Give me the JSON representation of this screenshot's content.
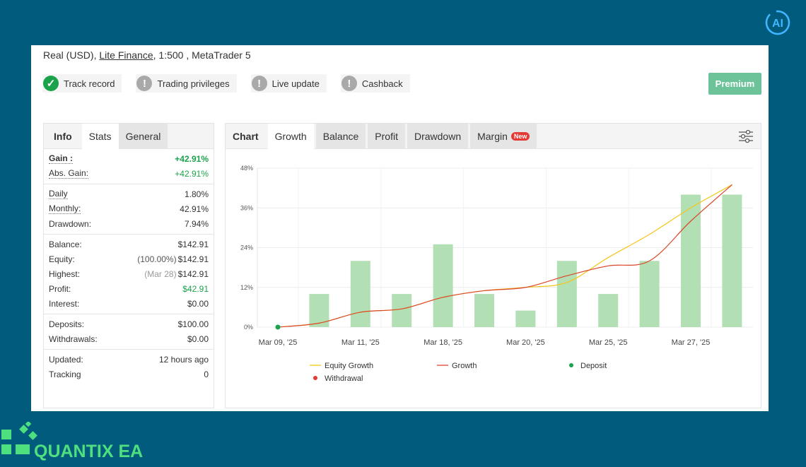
{
  "account": {
    "type": "Real (USD),",
    "broker": "Lite Finance",
    "rest": ", 1:500 , MetaTrader 5"
  },
  "badges": [
    {
      "label": "Track record",
      "status": "ok",
      "icon": "check-circle-icon"
    },
    {
      "label": "Trading privileges",
      "status": "warn",
      "icon": "exclamation-circle-icon"
    },
    {
      "label": "Live update",
      "status": "warn",
      "icon": "exclamation-circle-icon"
    },
    {
      "label": "Cashback",
      "status": "warn",
      "icon": "exclamation-circle-icon"
    }
  ],
  "premium_label": "Premium",
  "stats_tabs": [
    "Info",
    "Stats",
    "General"
  ],
  "stats": {
    "gain": {
      "label": "Gain :",
      "value": "+42.91%"
    },
    "abs_gain": {
      "label": "Abs. Gain:",
      "value": "+42.91%"
    },
    "daily": {
      "label": "Daily",
      "value": "1.80%"
    },
    "monthly": {
      "label": "Monthly:",
      "value": "42.91%"
    },
    "drawdown": {
      "label": "Drawdown:",
      "value": "7.94%"
    },
    "balance": {
      "label": "Balance:",
      "value": "$142.91"
    },
    "equity": {
      "label": "Equity:",
      "note": "(100.00%)",
      "value": "$142.91"
    },
    "highest": {
      "label": "Highest:",
      "note": "(Mar 28)",
      "value": "$142.91"
    },
    "profit": {
      "label": "Profit:",
      "value": "$42.91"
    },
    "interest": {
      "label": "Interest:",
      "value": "$0.00"
    },
    "deposits": {
      "label": "Deposits:",
      "value": "$100.00"
    },
    "withdrawals": {
      "label": "Withdrawals:",
      "value": "$0.00"
    },
    "updated": {
      "label": "Updated:",
      "value": "12 hours ago"
    },
    "tracking": {
      "label": "Tracking",
      "value": "0"
    }
  },
  "chart_tabs": {
    "items": [
      "Chart",
      "Growth",
      "Balance",
      "Profit",
      "Drawdown",
      "Margin"
    ],
    "new_badge": "New"
  },
  "colors": {
    "equity_growth": "#f5c518",
    "growth": "#d9472b",
    "deposit": "#1aa34a",
    "withdrawal": "#e53935",
    "bars": "#b3dfb4",
    "background": "#015b7d"
  },
  "chart_data": {
    "type": "bar",
    "x_ticks": [
      "Mar 09, '25",
      "Mar 11, '25",
      "Mar 18, '25",
      "Mar 20, '25",
      "Mar 25, '25",
      "Mar 27, '25"
    ],
    "y_ticks": [
      "0%",
      "12%",
      "24%",
      "36%",
      "48%"
    ],
    "ylim": [
      0,
      48
    ],
    "bar_values": [
      10,
      20,
      10,
      25,
      10,
      5,
      20,
      10,
      20,
      40,
      40
    ],
    "series": [
      {
        "name": "Equity Growth",
        "type": "line",
        "values": [
          [
            0,
            0
          ],
          [
            1,
            1.2
          ],
          [
            2,
            4.5
          ],
          [
            3,
            5.5
          ],
          [
            4,
            9
          ],
          [
            5,
            11
          ],
          [
            6,
            12
          ],
          [
            7,
            13.5
          ],
          [
            8,
            21
          ],
          [
            9,
            28
          ],
          [
            10,
            36
          ],
          [
            11,
            43
          ]
        ]
      },
      {
        "name": "Growth",
        "type": "line",
        "values": [
          [
            0,
            0
          ],
          [
            1,
            1.2
          ],
          [
            2,
            4.5
          ],
          [
            3,
            5.5
          ],
          [
            4,
            9
          ],
          [
            5,
            11
          ],
          [
            6,
            12
          ],
          [
            7,
            15.5
          ],
          [
            8,
            18.5
          ],
          [
            9,
            20
          ],
          [
            10,
            32
          ],
          [
            11,
            43
          ]
        ]
      }
    ],
    "deposit_points": [
      [
        0,
        0
      ]
    ],
    "legend": [
      "Equity Growth",
      "Growth",
      "Deposit",
      "Withdrawal"
    ],
    "legend_position": "bottom",
    "grid": true
  },
  "brand": {
    "name": "QUANTIX EA",
    "logo_icon": "pixel-squares-icon",
    "corner_icon": "ai-circle-icon"
  }
}
